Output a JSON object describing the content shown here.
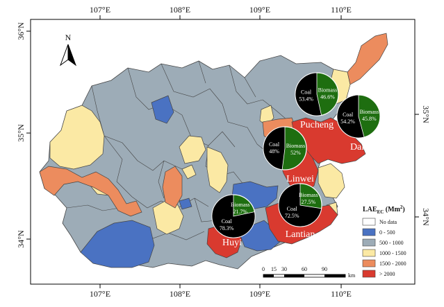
{
  "axes": {
    "top_lon": [
      "107°E",
      "108°E",
      "109°E",
      "110°E"
    ],
    "bottom_lon": [
      "107°E",
      "108°E",
      "109°E",
      "110°E"
    ],
    "left_lat": [
      "36°N",
      "35°N",
      "34°N"
    ],
    "right_lat": [
      "35°N",
      "34°N"
    ]
  },
  "north_arrow": {
    "label": "N"
  },
  "legend": {
    "title_main": "LAE",
    "title_sub": "EC",
    "title_unit": " (Mm",
    "title_sup": "2",
    "title_close": ")",
    "items": [
      {
        "label": "No data",
        "color": "#ffffff"
      },
      {
        "label": "0 - 500",
        "color": "#4a72c2"
      },
      {
        "label": "500 - 1000",
        "color": "#9dacb7"
      },
      {
        "label": "1000 - 1500",
        "color": "#fbe9a4"
      },
      {
        "label": "1500 - 2000",
        "color": "#ec8c5e"
      },
      {
        "label": "> 2000",
        "color": "#d93a2f"
      }
    ]
  },
  "scale_bar": {
    "ticks": [
      "0",
      "15",
      "30",
      "60",
      "90"
    ],
    "unit": "km"
  },
  "colors": {
    "coal": "#000000",
    "biomass": "#1e6e10",
    "border": "#444444"
  },
  "cities": [
    {
      "name": "Pucheng",
      "coal_label": "Coal",
      "coal_value": "53.4%",
      "biomass_label": "Biomass",
      "biomass_value": "46.6%",
      "coal_pct": 53.4
    },
    {
      "name": "Dali",
      "coal_label": "Coal",
      "coal_value": "54.2%",
      "biomass_label": "Biomass",
      "biomass_value": "45.8%",
      "coal_pct": 54.2
    },
    {
      "name": "Linwei",
      "coal_label": "Coal",
      "coal_value": "48%",
      "biomass_label": "Biomass",
      "biomass_value": "52%",
      "coal_pct": 48
    },
    {
      "name": "Lantian",
      "coal_label": "Coal",
      "coal_value": "72.5%",
      "biomass_label": "Biomass",
      "biomass_value": "27.5%",
      "coal_pct": 72.5
    },
    {
      "name": "Huyi",
      "coal_label": "Coal",
      "coal_value": "78.3%",
      "biomass_label": "Biomass",
      "biomass_value": "21.7%",
      "coal_pct": 78.3
    }
  ]
}
